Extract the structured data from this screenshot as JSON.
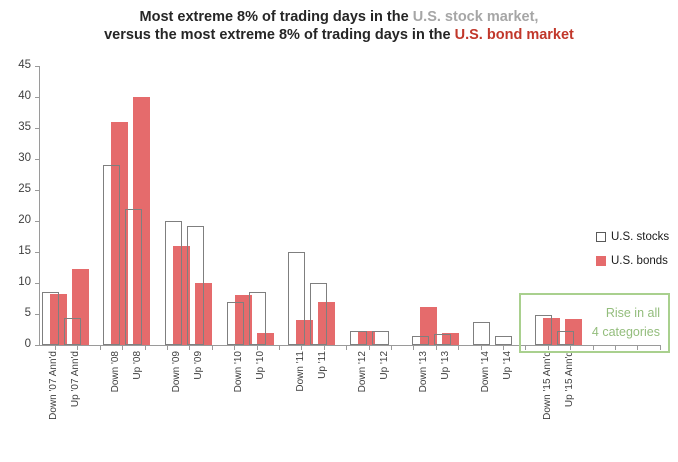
{
  "title": {
    "line1_prefix": "Most extreme 8% of trading days in the ",
    "line1_highlight": "U.S. stock market,",
    "line2_prefix": "versus the most extreme 8% of trading days in the ",
    "line2_highlight": "U.S. bond market"
  },
  "legend": {
    "stocks_label": "U.S. stocks",
    "bonds_label": "U.S. bonds"
  },
  "annotation": {
    "line1": "Rise in all",
    "line2": "4 categories"
  },
  "colors": {
    "bonds_fill": "#e56b6c",
    "stocks_border": "#7f7f7f",
    "title_gray": "#a6a6a6",
    "title_red": "#c1372a",
    "annotation_green": "#93bd7c",
    "annotation_border": "#a9d08e",
    "axis": "#9a9a9a",
    "tick_text": "#3f3f3f"
  },
  "chart_data": {
    "type": "bar",
    "title": "Most extreme 8% of trading days in the U.S. stock market, versus the most extreme 8% of trading days in the U.S. bond market",
    "categories": [
      "Down '07 Ann'd",
      "Up '07 Ann'd",
      "Down '08",
      "Up '08",
      "Down '09",
      "Up '09",
      "Down '10",
      "Up '10",
      "Down '11",
      "Up '11",
      "Down '12",
      "Up '12",
      "Down '13",
      "Up '13",
      "Down '14",
      "Up '14",
      "Down '15 Ann'd",
      "Up '15 Ann'd"
    ],
    "series": [
      {
        "name": "U.S. stocks",
        "values": [
          8.5,
          4.4,
          29,
          22,
          20,
          19.2,
          7,
          8.6,
          15,
          10,
          2.2,
          2.3,
          1.5,
          1.8,
          3.7,
          1.5,
          4.8,
          2.2
        ]
      },
      {
        "name": "U.S. bonds",
        "values": [
          8.2,
          12.3,
          36,
          40,
          16,
          10,
          8.1,
          2,
          4.1,
          7,
          2.2,
          0,
          6.1,
          2,
          0,
          0,
          4.4,
          4.2
        ]
      }
    ],
    "ylim": [
      0,
      45
    ],
    "yticks": [
      0,
      5,
      10,
      15,
      20,
      25,
      30,
      35,
      40,
      45
    ],
    "grid": false,
    "legend_position": "right",
    "annotation_applies_to": [
      "Down '15 Ann'd",
      "Up '15 Ann'd"
    ]
  }
}
